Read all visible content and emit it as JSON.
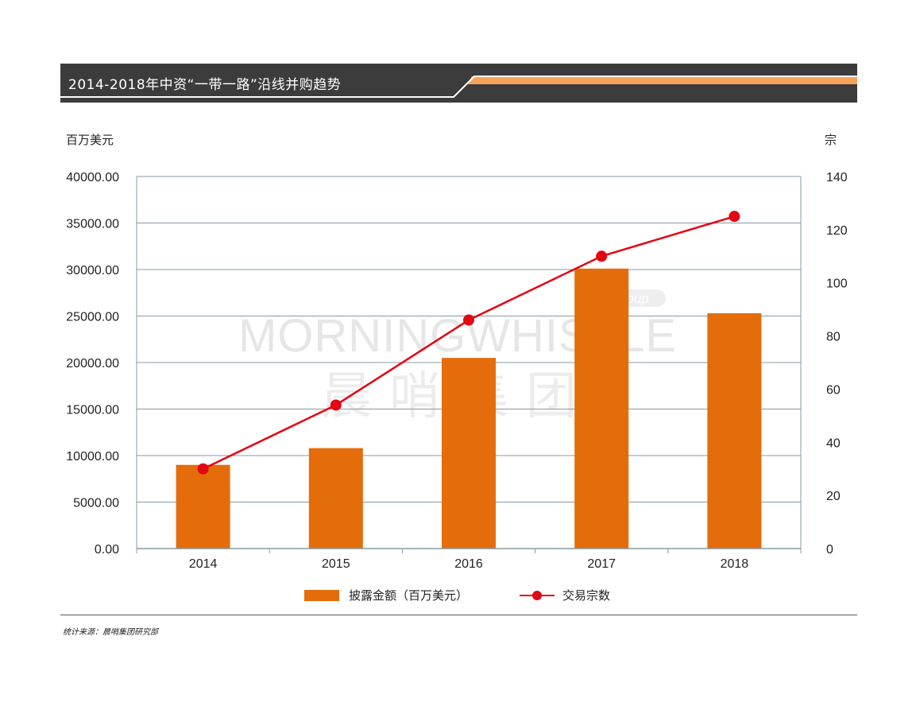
{
  "header": {
    "title": "2014-2018年中资“一带一路”沿线并购趋势",
    "colors": {
      "band": "#3c3c3c",
      "accent": "#f7a35c"
    }
  },
  "units": {
    "left": "百万美元",
    "right": "宗"
  },
  "chart_data": {
    "type": "bar",
    "categories": [
      "2014",
      "2015",
      "2016",
      "2017",
      "2018"
    ],
    "series": [
      {
        "name": "披露金额（百万美元）",
        "type": "bar",
        "axis": "left",
        "color": "#e46c0a",
        "values": [
          9000,
          10800,
          20500,
          30100,
          25300
        ]
      },
      {
        "name": "交易宗数",
        "type": "line",
        "axis": "right",
        "color": "#e30613",
        "values": [
          30,
          54,
          86,
          110,
          125
        ]
      }
    ],
    "y_left": {
      "min": 0,
      "max": 35000,
      "ticks": [
        0,
        5000,
        10000,
        15000,
        20000,
        25000,
        30000,
        35000,
        40000
      ],
      "tick_labels": [
        "0.00",
        "5000.00",
        "10000.00",
        "15000.00",
        "20000.00",
        "25000.00",
        "30000.00",
        "35000.00",
        "40000.00"
      ]
    },
    "y_right": {
      "min": 0,
      "max": 140,
      "ticks": [
        0,
        20,
        40,
        60,
        80,
        100,
        120,
        140
      ]
    },
    "grid": true,
    "legend_position": "bottom"
  },
  "watermark": {
    "line1": "MORNINGWHISTLE",
    "line2": "晨哨集团",
    "badge": "group"
  },
  "source": "统计来源：晨哨集团研究部"
}
